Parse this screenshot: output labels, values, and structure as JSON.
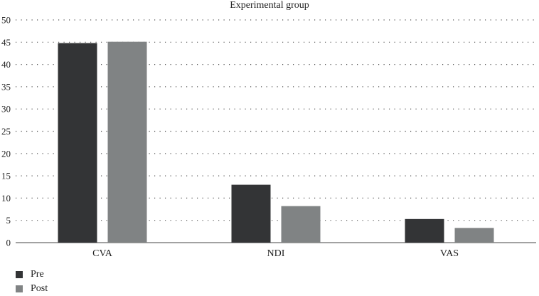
{
  "chart_data": {
    "type": "bar",
    "title": "Experimental group",
    "categories": [
      "CVA",
      "NDI",
      "VAS"
    ],
    "series": [
      {
        "name": "Pre",
        "values": [
          44.8,
          13.0,
          5.3
        ],
        "color": "#333436"
      },
      {
        "name": "Post",
        "values": [
          45.1,
          8.2,
          3.3
        ],
        "color": "#808384"
      }
    ],
    "xlabel": "",
    "ylabel": "",
    "ylim": [
      0,
      50
    ],
    "yticks": [
      0,
      5,
      10,
      15,
      20,
      25,
      30,
      35,
      40,
      45,
      50
    ],
    "grid": "dotted horizontal",
    "legend_position": "bottom-left"
  }
}
